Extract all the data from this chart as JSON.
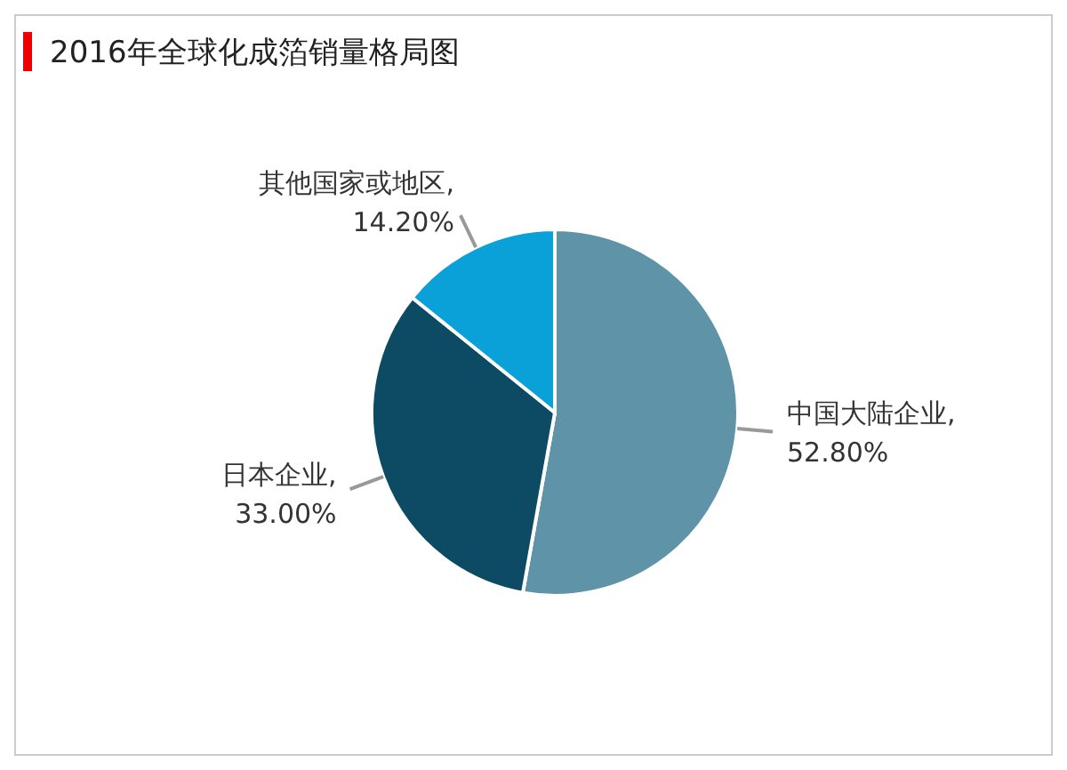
{
  "chart_data": {
    "type": "pie",
    "title": "2016年全球化成箔销量格局图",
    "categories": [
      "中国大陆企业",
      "日本企业",
      "其他国家或地区"
    ],
    "values": [
      52.8,
      33.0,
      14.2
    ],
    "colors": [
      "#5f93a8",
      "#0d4a63",
      "#0aa0d8"
    ],
    "value_labels": [
      ", 52.80%",
      ", 33.00%",
      ", 14.20%"
    ]
  }
}
